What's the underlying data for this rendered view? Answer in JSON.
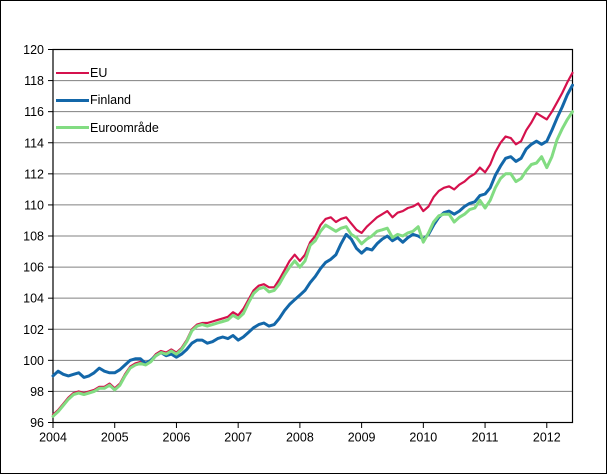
{
  "chart_data": {
    "type": "line",
    "title": "",
    "xlabel": "",
    "ylabel": "",
    "x_unit": "month",
    "x_start": "2004-01",
    "x_end": "2012-06",
    "x_tick_labels": [
      "2004",
      "2005",
      "2006",
      "2007",
      "2008",
      "2009",
      "2010",
      "2011",
      "2012"
    ],
    "y_ticks": [
      96,
      98,
      100,
      102,
      104,
      106,
      108,
      110,
      112,
      114,
      116,
      118,
      120
    ],
    "ylim": [
      96,
      120
    ],
    "grid": "horizontal",
    "legend_position": "top-left-inside",
    "series": [
      {
        "name": "EU",
        "color": "#d5114d",
        "line_width": 2.2,
        "values": [
          96.5,
          96.8,
          97.2,
          97.6,
          97.9,
          98.0,
          97.9,
          98.0,
          98.1,
          98.3,
          98.3,
          98.5,
          98.2,
          98.5,
          99.1,
          99.6,
          99.8,
          99.9,
          99.8,
          100.0,
          100.4,
          100.6,
          100.5,
          100.7,
          100.5,
          100.8,
          101.3,
          102.0,
          102.3,
          102.4,
          102.4,
          102.5,
          102.6,
          102.7,
          102.8,
          103.1,
          102.9,
          103.3,
          103.9,
          104.5,
          104.8,
          104.9,
          104.7,
          104.7,
          105.2,
          105.8,
          106.4,
          106.8,
          106.4,
          106.8,
          107.6,
          108.0,
          108.7,
          109.1,
          109.2,
          108.9,
          109.1,
          109.2,
          108.8,
          108.4,
          108.2,
          108.6,
          108.9,
          109.2,
          109.4,
          109.6,
          109.2,
          109.5,
          109.6,
          109.8,
          109.9,
          110.1,
          109.6,
          109.9,
          110.5,
          110.9,
          111.1,
          111.2,
          111.0,
          111.3,
          111.5,
          111.8,
          112.0,
          112.4,
          112.1,
          112.6,
          113.4,
          114.0,
          114.4,
          114.3,
          113.9,
          114.1,
          114.8,
          115.3,
          115.9,
          115.7,
          115.5,
          116.0,
          116.6,
          117.2,
          117.9,
          118.5
        ]
      },
      {
        "name": "Finland",
        "color": "#1367a9",
        "line_width": 3,
        "values": [
          99.0,
          99.3,
          99.1,
          99.0,
          99.1,
          99.2,
          98.9,
          99.0,
          99.2,
          99.5,
          99.3,
          99.2,
          99.2,
          99.4,
          99.7,
          100.0,
          100.1,
          100.1,
          99.8,
          100.0,
          100.3,
          100.5,
          100.3,
          100.4,
          100.2,
          100.4,
          100.7,
          101.1,
          101.3,
          101.3,
          101.1,
          101.2,
          101.4,
          101.5,
          101.4,
          101.6,
          101.3,
          101.5,
          101.8,
          102.1,
          102.3,
          102.4,
          102.2,
          102.3,
          102.7,
          103.2,
          103.6,
          103.9,
          104.2,
          104.5,
          105.0,
          105.4,
          105.9,
          106.3,
          106.5,
          106.8,
          107.5,
          108.1,
          107.8,
          107.2,
          106.9,
          107.2,
          107.1,
          107.5,
          107.8,
          108.0,
          107.7,
          107.9,
          107.6,
          107.9,
          108.1,
          108.0,
          107.8,
          108.1,
          108.7,
          109.2,
          109.5,
          109.6,
          109.4,
          109.6,
          109.9,
          110.1,
          110.2,
          110.6,
          110.7,
          111.1,
          111.9,
          112.5,
          113.0,
          113.1,
          112.8,
          113.0,
          113.6,
          113.9,
          114.1,
          113.9,
          114.1,
          114.8,
          115.6,
          116.3,
          117.1,
          117.7
        ]
      },
      {
        "name": "Euroområde",
        "color": "#82dc82",
        "line_width": 3,
        "values": [
          96.4,
          96.7,
          97.1,
          97.5,
          97.8,
          97.9,
          97.8,
          97.9,
          98.0,
          98.2,
          98.2,
          98.4,
          98.1,
          98.4,
          99.0,
          99.5,
          99.7,
          99.8,
          99.7,
          99.9,
          100.3,
          100.5,
          100.4,
          100.6,
          100.4,
          100.7,
          101.2,
          101.9,
          102.2,
          102.3,
          102.2,
          102.3,
          102.4,
          102.5,
          102.6,
          102.9,
          102.7,
          103.0,
          103.7,
          104.3,
          104.6,
          104.7,
          104.4,
          104.5,
          104.9,
          105.5,
          106.0,
          106.4,
          106.0,
          106.4,
          107.4,
          107.7,
          108.3,
          108.7,
          108.5,
          108.3,
          108.5,
          108.6,
          108.1,
          107.9,
          107.5,
          107.8,
          108.0,
          108.3,
          108.4,
          108.5,
          107.9,
          108.1,
          108.0,
          108.2,
          108.3,
          108.6,
          107.6,
          108.2,
          108.9,
          109.3,
          109.4,
          109.4,
          108.9,
          109.2,
          109.4,
          109.7,
          109.8,
          110.3,
          109.8,
          110.3,
          111.1,
          111.7,
          112.0,
          112.0,
          111.5,
          111.7,
          112.2,
          112.6,
          112.7,
          113.1,
          112.4,
          113.1,
          114.2,
          114.9,
          115.5,
          116.0
        ]
      }
    ]
  },
  "colors": {
    "axis": "#000000",
    "grid": "#808080",
    "background": "#ffffff",
    "text": "#000000"
  }
}
